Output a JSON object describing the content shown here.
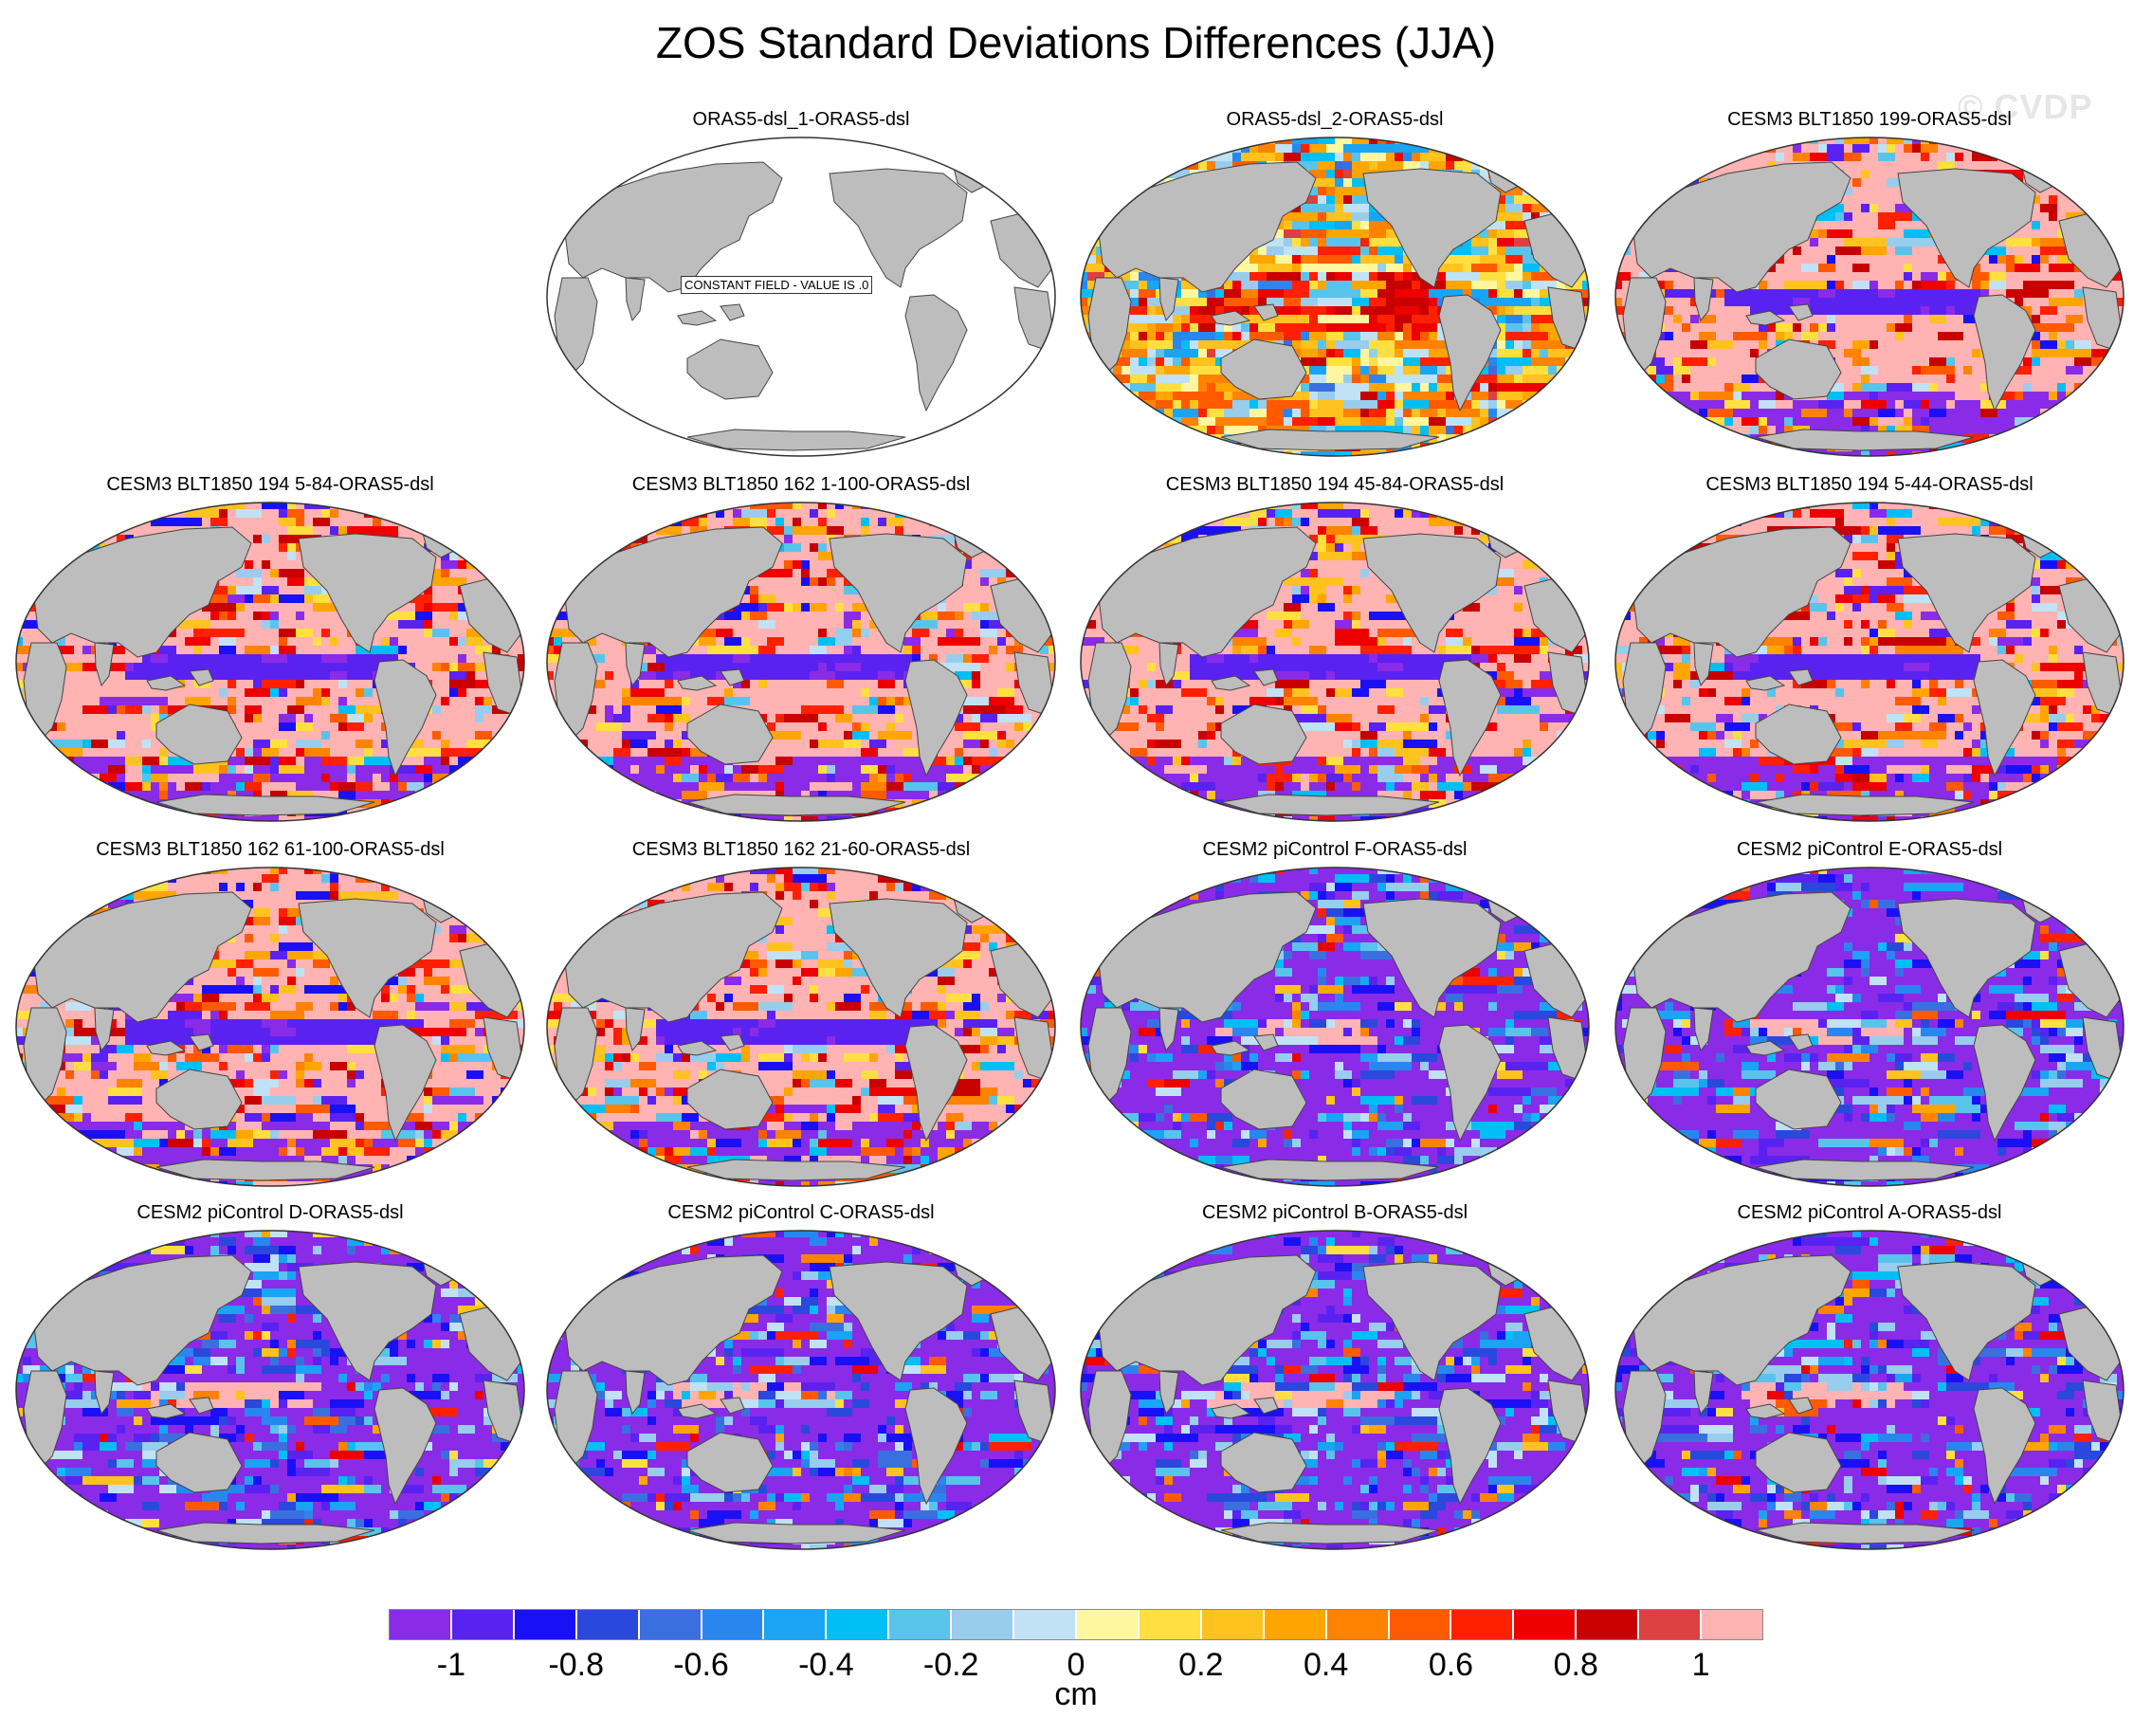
{
  "title": "ZOS Standard Deviations Differences (JJA)",
  "watermark": "© CVDP",
  "colors": {
    "land": "#bdbdbd",
    "coast": "#444444",
    "ocean_border": "#333333"
  },
  "panels": [
    {
      "title": "ORAS5-dsl_1-ORAS5-dsl",
      "pattern": "constant",
      "constant_label": "CONSTANT FIELD - VALUE IS .0"
    },
    {
      "title": "ORAS5-dsl_2-ORAS5-dsl",
      "pattern": "mixed"
    },
    {
      "title": "CESM3 BLT1850 199-ORAS5-dsl",
      "pattern": "positive"
    },
    {
      "title": "CESM3 BLT1850 194 5-84-ORAS5-dsl",
      "pattern": "positive"
    },
    {
      "title": "CESM3 BLT1850 162 1-100-ORAS5-dsl",
      "pattern": "positive"
    },
    {
      "title": "CESM3 BLT1850 194 45-84-ORAS5-dsl",
      "pattern": "positive"
    },
    {
      "title": "CESM3 BLT1850 194 5-44-ORAS5-dsl",
      "pattern": "positive"
    },
    {
      "title": "CESM3 BLT1850 162 61-100-ORAS5-dsl",
      "pattern": "positive"
    },
    {
      "title": "CESM3 BLT1850 162 21-60-ORAS5-dsl",
      "pattern": "positive"
    },
    {
      "title": "CESM2 piControl F-ORAS5-dsl",
      "pattern": "negative"
    },
    {
      "title": "CESM2 piControl E-ORAS5-dsl",
      "pattern": "negative"
    },
    {
      "title": "CESM2 piControl D-ORAS5-dsl",
      "pattern": "negative"
    },
    {
      "title": "CESM2 piControl C-ORAS5-dsl",
      "pattern": "negative"
    },
    {
      "title": "CESM2 piControl B-ORAS5-dsl",
      "pattern": "negative"
    },
    {
      "title": "CESM2 piControl A-ORAS5-dsl",
      "pattern": "negative"
    }
  ],
  "colorbar": {
    "unit": "cm",
    "tick_labels": [
      "-1",
      "-0.8",
      "-0.6",
      "-0.4",
      "-0.2",
      "0",
      "0.2",
      "0.4",
      "0.6",
      "0.8",
      "1"
    ],
    "colors": [
      "#8a2be8",
      "#5a22f0",
      "#1a10f5",
      "#2a48dc",
      "#3a6fe0",
      "#2a86ef",
      "#1aa4f3",
      "#00bff5",
      "#58c4ec",
      "#98cded",
      "#c0e2f4",
      "#fff7a0",
      "#ffe040",
      "#ffc21e",
      "#ffa500",
      "#ff8200",
      "#ff5a00",
      "#ff2000",
      "#ee0000",
      "#c80000",
      "#dd4040",
      "#ffb3b3"
    ]
  }
}
